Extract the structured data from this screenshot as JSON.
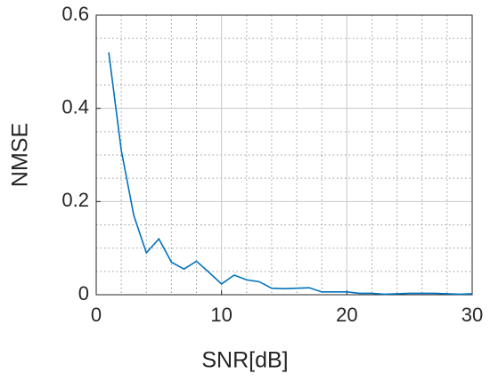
{
  "chart_data": {
    "type": "line",
    "x_label": "SNR[dB]",
    "y_label": "NMSE",
    "x": [
      1,
      2,
      3,
      4,
      5,
      6,
      7,
      8,
      9,
      10,
      11,
      12,
      13,
      14,
      15,
      16,
      17,
      18,
      19,
      20,
      21,
      22,
      23,
      24,
      25,
      26,
      27,
      28,
      29,
      30
    ],
    "series": [
      {
        "color": "#0072bd",
        "values": [
          0.52,
          0.31,
          0.17,
          0.09,
          0.12,
          0.07,
          0.055,
          0.072,
          0.048,
          0.023,
          0.042,
          0.032,
          0.028,
          0.014,
          0.013,
          0.014,
          0.015,
          0.006,
          0.006,
          0.006,
          0.003,
          0.003,
          0.001,
          0.002,
          0.003,
          0.003,
          0.003,
          0.002,
          0.001,
          0.002
        ]
      }
    ],
    "xlim": [
      0,
      30
    ],
    "ylim": [
      0,
      0.6
    ],
    "xticks": [
      0,
      10,
      20,
      30
    ],
    "yticks": [
      0,
      0.2,
      0.4,
      0.6
    ],
    "xminorticks": [
      2,
      4,
      6,
      8,
      12,
      14,
      16,
      18,
      22,
      24,
      26,
      28
    ],
    "yminorticks": [
      0.05,
      0.1,
      0.15,
      0.25,
      0.3,
      0.35,
      0.45,
      0.5,
      0.55
    ],
    "grid": true,
    "minor_grid": true
  }
}
